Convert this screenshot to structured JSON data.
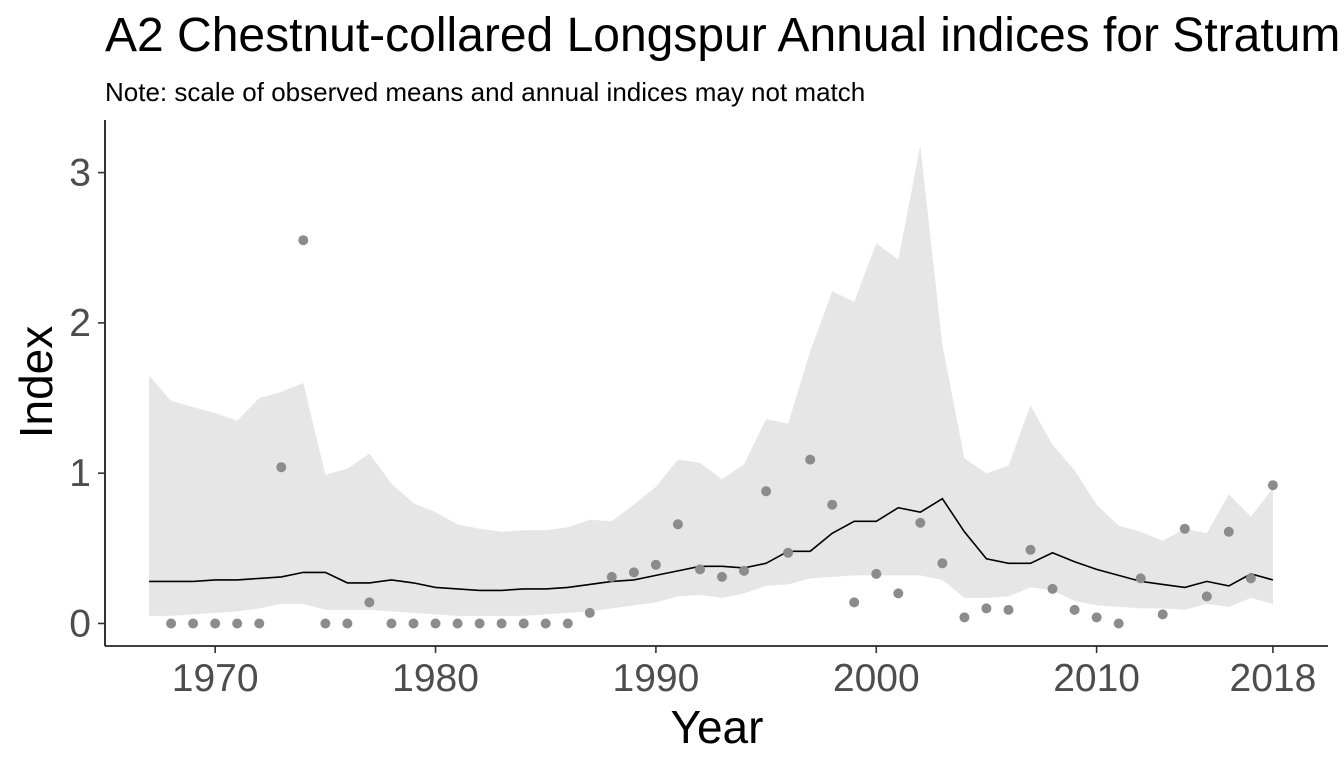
{
  "chart_data": {
    "type": "line",
    "title": "A2 Chestnut-collared Longspur Annual indices for Stratum",
    "subtitle": "Note: scale of observed means and annual indices may not match",
    "xlabel": "Year",
    "ylabel": "Index",
    "xlim": [
      1965,
      2020.5
    ],
    "ylim": [
      -0.15,
      3.35
    ],
    "x_ticks": [
      1970,
      1980,
      1990,
      2000,
      2010,
      2018
    ],
    "y_ticks": [
      0,
      1,
      2,
      3
    ],
    "grid": false,
    "legend": "none",
    "colors": {
      "ribbon": "#e6e6e6",
      "line": "#000000",
      "points": "#8c8c8c",
      "tick_text": "#4d4d4d"
    },
    "x": [
      1967,
      1968,
      1969,
      1970,
      1971,
      1972,
      1973,
      1974,
      1975,
      1976,
      1977,
      1978,
      1979,
      1980,
      1981,
      1982,
      1983,
      1984,
      1985,
      1986,
      1987,
      1988,
      1989,
      1990,
      1991,
      1992,
      1993,
      1994,
      1995,
      1996,
      1997,
      1998,
      1999,
      2000,
      2001,
      2002,
      2003,
      2004,
      2005,
      2006,
      2007,
      2008,
      2009,
      2010,
      2011,
      2012,
      2013,
      2014,
      2015,
      2016,
      2017,
      2018
    ],
    "series": [
      {
        "kind": "index",
        "values": [
          0.28,
          0.28,
          0.28,
          0.29,
          0.29,
          0.3,
          0.31,
          0.34,
          0.34,
          0.27,
          0.27,
          0.29,
          0.27,
          0.24,
          0.23,
          0.22,
          0.22,
          0.23,
          0.23,
          0.24,
          0.26,
          0.28,
          0.29,
          0.32,
          0.35,
          0.38,
          0.38,
          0.37,
          0.4,
          0.48,
          0.48,
          0.6,
          0.68,
          0.68,
          0.77,
          0.74,
          0.83,
          0.61,
          0.43,
          0.4,
          0.4,
          0.47,
          0.41,
          0.36,
          0.32,
          0.28,
          0.26,
          0.24,
          0.28,
          0.25,
          0.33,
          0.29
        ],
        "lower": [
          0.05,
          0.05,
          0.06,
          0.07,
          0.08,
          0.1,
          0.13,
          0.13,
          0.09,
          0.09,
          0.09,
          0.08,
          0.07,
          0.06,
          0.05,
          0.05,
          0.05,
          0.05,
          0.06,
          0.07,
          0.08,
          0.1,
          0.12,
          0.14,
          0.18,
          0.19,
          0.17,
          0.2,
          0.25,
          0.26,
          0.3,
          0.31,
          0.32,
          0.32,
          0.32,
          0.32,
          0.29,
          0.17,
          0.17,
          0.18,
          0.24,
          0.22,
          0.15,
          0.12,
          0.11,
          0.1,
          0.1,
          0.09,
          0.13,
          0.11,
          0.17,
          0.13
        ],
        "upper": [
          1.65,
          1.48,
          1.44,
          1.4,
          1.35,
          1.5,
          1.54,
          1.6,
          0.99,
          1.03,
          1.13,
          0.93,
          0.8,
          0.74,
          0.66,
          0.63,
          0.61,
          0.62,
          0.62,
          0.64,
          0.69,
          0.68,
          0.79,
          0.91,
          1.09,
          1.07,
          0.96,
          1.06,
          1.36,
          1.33,
          1.81,
          2.21,
          2.14,
          2.53,
          2.42,
          3.18,
          1.85,
          1.1,
          1.0,
          1.05,
          1.45,
          1.19,
          1.02,
          0.79,
          0.65,
          0.61,
          0.55,
          0.63,
          0.6,
          0.86,
          0.71,
          0.9
        ]
      },
      {
        "kind": "observed_means",
        "x": [
          1968,
          1969,
          1970,
          1971,
          1972,
          1973,
          1974,
          1975,
          1976,
          1977,
          1978,
          1979,
          1980,
          1981,
          1982,
          1983,
          1984,
          1985,
          1986,
          1987,
          1988,
          1989,
          1990,
          1991,
          1992,
          1993,
          1994,
          1995,
          1996,
          1997,
          1998,
          1999,
          2000,
          2001,
          2002,
          2003,
          2004,
          2005,
          2006,
          2007,
          2008,
          2009,
          2010,
          2011,
          2012,
          2013,
          2014,
          2015,
          2016,
          2017,
          2018
        ],
        "values": [
          0.0,
          0.0,
          0.0,
          0.0,
          0.0,
          1.04,
          2.55,
          0.0,
          0.0,
          0.14,
          0.0,
          0.0,
          0.0,
          0.0,
          0.0,
          0.0,
          0.0,
          0.0,
          0.0,
          0.07,
          0.31,
          0.34,
          0.39,
          0.66,
          0.36,
          0.31,
          0.35,
          0.88,
          0.47,
          1.09,
          0.79,
          0.14,
          0.33,
          0.2,
          0.67,
          0.4,
          0.04,
          0.1,
          0.09,
          0.49,
          0.23,
          0.09,
          0.04,
          0.0,
          0.3,
          0.06,
          0.63,
          0.18,
          0.61,
          0.3,
          0.92
        ]
      }
    ]
  }
}
